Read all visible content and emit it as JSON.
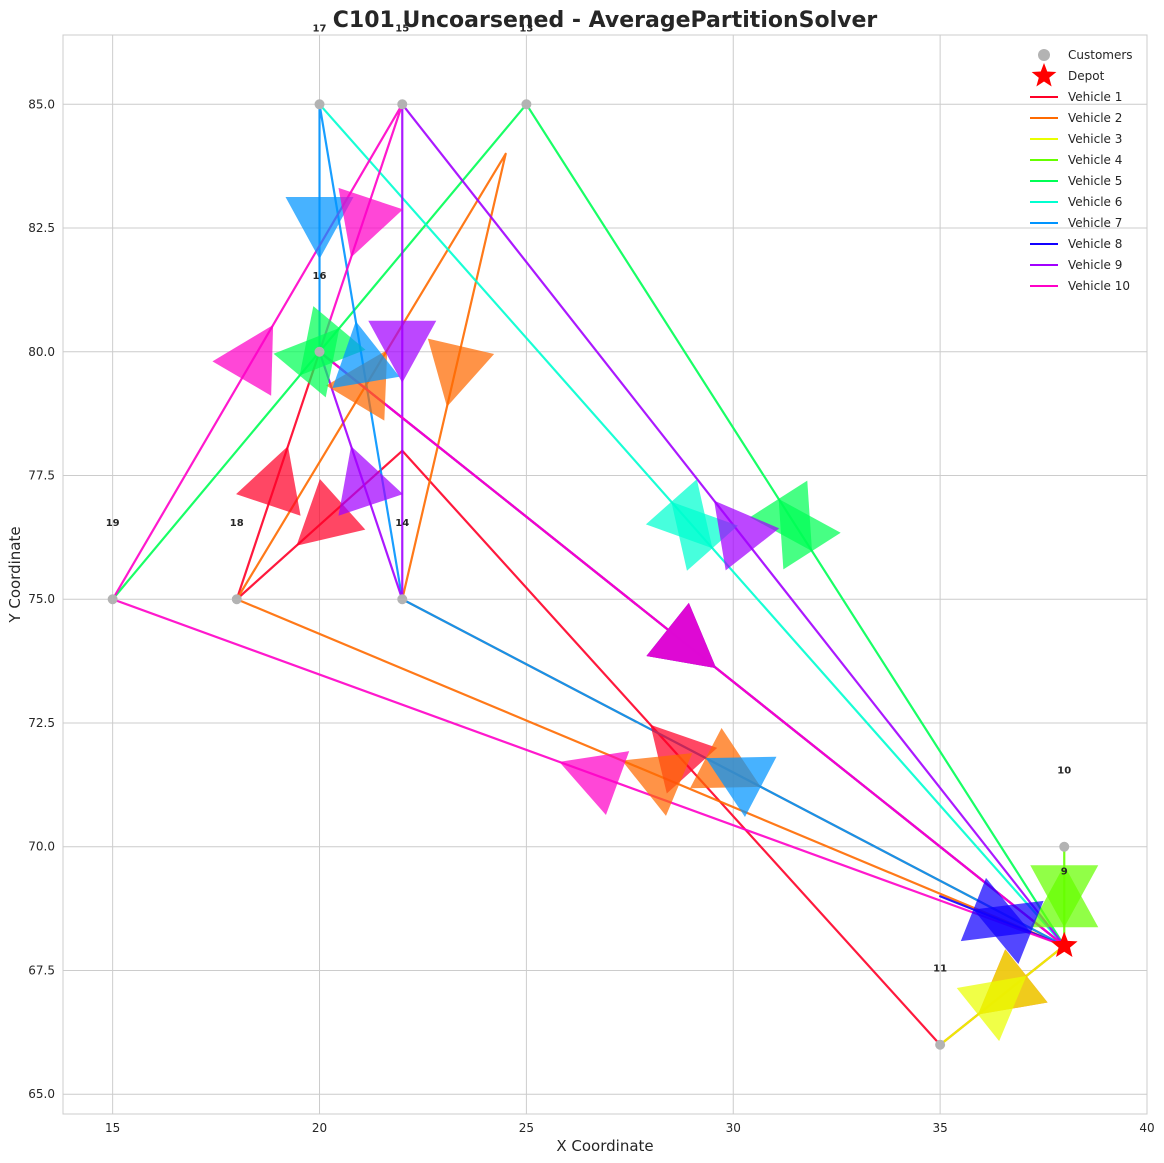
{
  "chart_data": {
    "type": "scatter",
    "title": "C101 Uncoarsened - AveragePartitionSolver",
    "xlabel": "X Coordinate",
    "ylabel": "Y Coordinate",
    "xlim": [
      13.8,
      40.0
    ],
    "ylim": [
      64.6,
      86.4
    ],
    "xticks": [
      15,
      20,
      25,
      30,
      35,
      40
    ],
    "yticks": [
      65.0,
      67.5,
      70.0,
      72.5,
      75.0,
      77.5,
      80.0,
      82.5,
      85.0
    ],
    "ytick_labels": [
      "65.0",
      "67.5",
      "70.0",
      "72.5",
      "75.0",
      "77.5",
      "80.0",
      "82.5",
      "85.0"
    ],
    "grid": true,
    "legend_position": "top-right",
    "depot": {
      "name": "Depot",
      "x": 38,
      "y": 68,
      "color": "#ff0000"
    },
    "customers": {
      "name": "Customers",
      "color": "#b3b3b3",
      "points": [
        {
          "id": "9",
          "x": 38,
          "y": 68
        },
        {
          "id": "10",
          "x": 38,
          "y": 70
        },
        {
          "id": "11",
          "x": 35,
          "y": 66
        },
        {
          "id": "14",
          "x": 22,
          "y": 75
        },
        {
          "id": "15",
          "x": 22,
          "y": 85
        },
        {
          "id": "16",
          "x": 20,
          "y": 80
        },
        {
          "id": "17",
          "x": 20,
          "y": 85
        },
        {
          "id": "18",
          "x": 18,
          "y": 75
        },
        {
          "id": "19",
          "x": 15,
          "y": 75
        },
        {
          "id": "13",
          "x": 25,
          "y": 85
        }
      ]
    },
    "series": [
      {
        "name": "Vehicle 1",
        "color": "#ff0028",
        "route": [
          [
            38,
            68
          ],
          [
            35,
            66
          ],
          [
            22,
            78
          ],
          [
            18,
            75
          ],
          [
            20,
            80
          ],
          [
            38,
            68
          ]
        ]
      },
      {
        "name": "Vehicle 2",
        "color": "#ff6a00",
        "route": [
          [
            38,
            68
          ],
          [
            18,
            75
          ],
          [
            24.5,
            84
          ],
          [
            22,
            75
          ],
          [
            38,
            68
          ]
        ]
      },
      {
        "name": "Vehicle 3",
        "color": "#eaff00",
        "route": [
          [
            38,
            68
          ],
          [
            35,
            66
          ],
          [
            38,
            68
          ]
        ]
      },
      {
        "name": "Vehicle 4",
        "color": "#66ff00",
        "route": [
          [
            38,
            68
          ],
          [
            38,
            70
          ],
          [
            38,
            68
          ]
        ]
      },
      {
        "name": "Vehicle 5",
        "color": "#00ff55",
        "route": [
          [
            38,
            68
          ],
          [
            25,
            85
          ],
          [
            15,
            75
          ],
          [
            25,
            85
          ],
          [
            38,
            68
          ]
        ]
      },
      {
        "name": "Vehicle 6",
        "color": "#00ffd0",
        "route": [
          [
            38,
            68
          ],
          [
            20,
            85
          ],
          [
            38,
            68
          ]
        ]
      },
      {
        "name": "Vehicle 7",
        "color": "#0094ff",
        "route": [
          [
            38,
            68
          ],
          [
            22,
            75
          ],
          [
            20,
            85
          ],
          [
            20,
            80
          ],
          [
            38,
            68
          ]
        ]
      },
      {
        "name": "Vehicle 8",
        "color": "#1100ff",
        "route": [
          [
            38,
            68
          ],
          [
            35,
            69
          ],
          [
            38,
            68
          ]
        ]
      },
      {
        "name": "Vehicle 9",
        "color": "#a200ff",
        "route": [
          [
            38,
            68
          ],
          [
            22,
            85
          ],
          [
            22,
            75
          ],
          [
            20,
            80
          ],
          [
            38,
            68
          ]
        ]
      },
      {
        "name": "Vehicle 10",
        "color": "#ff00c8",
        "route": [
          [
            38,
            68
          ],
          [
            15,
            75
          ],
          [
            22,
            85
          ],
          [
            20,
            80
          ],
          [
            38,
            68
          ]
        ]
      }
    ],
    "legend": [
      {
        "label": "Customers",
        "marker": "circle",
        "color": "#b3b3b3"
      },
      {
        "label": "Depot",
        "marker": "star",
        "color": "#ff0000"
      },
      {
        "label": "Vehicle 1",
        "marker": "line",
        "color": "#ff0028"
      },
      {
        "label": "Vehicle 2",
        "marker": "line",
        "color": "#ff6a00"
      },
      {
        "label": "Vehicle 3",
        "marker": "line",
        "color": "#eaff00"
      },
      {
        "label": "Vehicle 4",
        "marker": "line",
        "color": "#66ff00"
      },
      {
        "label": "Vehicle 5",
        "marker": "line",
        "color": "#00ff55"
      },
      {
        "label": "Vehicle 6",
        "marker": "line",
        "color": "#00ffd0"
      },
      {
        "label": "Vehicle 7",
        "marker": "line",
        "color": "#0094ff"
      },
      {
        "label": "Vehicle 8",
        "marker": "line",
        "color": "#1100ff"
      },
      {
        "label": "Vehicle 9",
        "marker": "line",
        "color": "#a200ff"
      },
      {
        "label": "Vehicle 10",
        "marker": "line",
        "color": "#ff00c8"
      }
    ]
  }
}
